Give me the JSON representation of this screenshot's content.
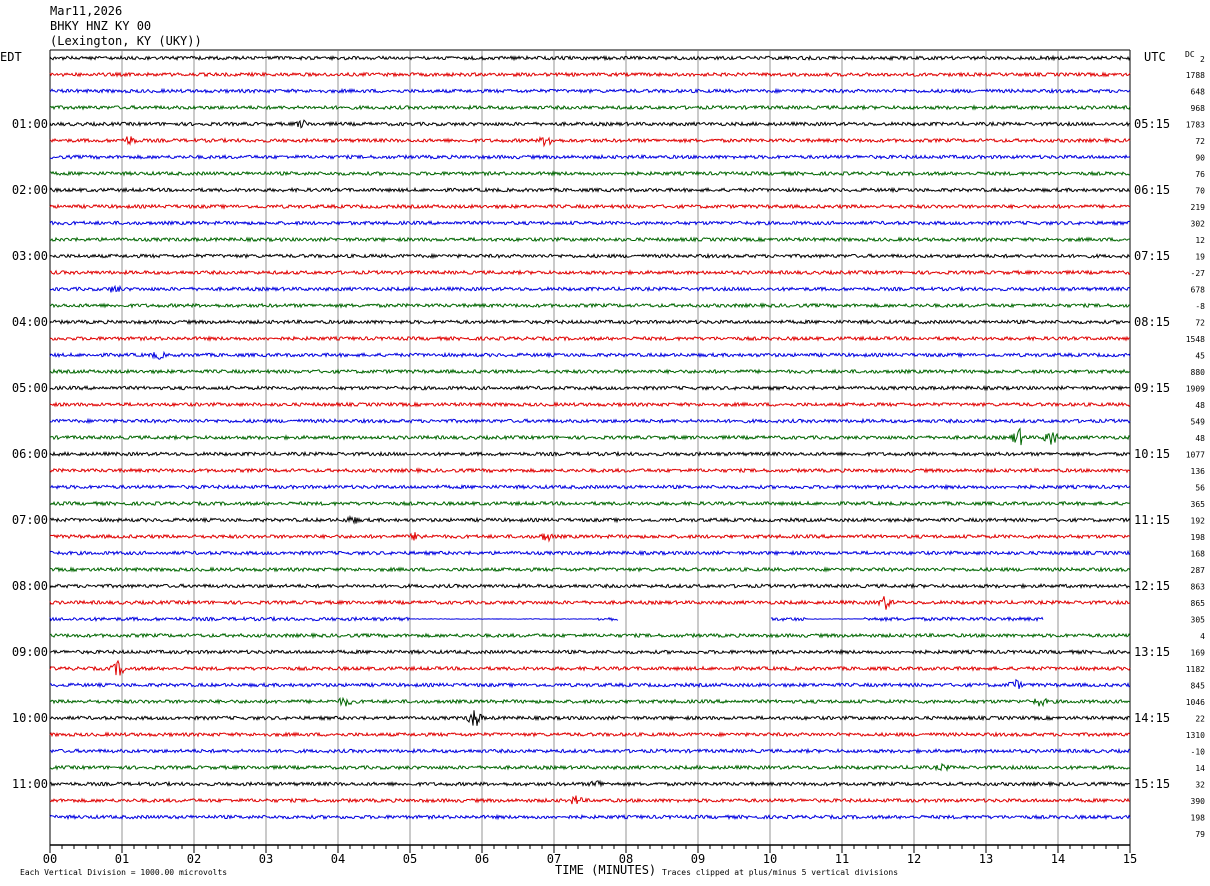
{
  "header": {
    "date": "Mar11,2026",
    "station": "BHKY HNZ KY 00",
    "location": "(Lexington, KY (UKY))"
  },
  "labels": {
    "left_zone": "EDT",
    "right_zone": "UTC",
    "dc": "DC",
    "dc_value": "2",
    "footer_left": "Each Vertical Division = 1000.00 microvolts",
    "footer_center": "TIME (MINUTES)",
    "footer_right": "Traces clipped at plus/minus 5 vertical divisions"
  },
  "chart_data": {
    "type": "line",
    "title": "",
    "xlabel": "TIME (MINUTES)",
    "ylabel": "",
    "xlim": [
      0,
      15
    ],
    "x_ticks": [
      "00",
      "01",
      "02",
      "03",
      "04",
      "05",
      "06",
      "07",
      "08",
      "09",
      "10",
      "11",
      "12",
      "13",
      "14",
      "15"
    ],
    "grid": "vertical lines every minute",
    "trace_colors": [
      "#000000",
      "#e00000",
      "#0000e0",
      "#006600"
    ],
    "left_hour_labels": [
      "01:00",
      "02:00",
      "03:00",
      "04:00",
      "05:00",
      "06:00",
      "07:00",
      "08:00",
      "09:00",
      "10:00",
      "11:00"
    ],
    "right_hour_labels": [
      "05:15",
      "06:15",
      "07:15",
      "08:15",
      "09:15",
      "10:15",
      "11:15",
      "12:15",
      "13:15",
      "14:15",
      "15:15"
    ],
    "trace_dc_offsets": [
      "1788",
      "648",
      "968",
      "1783",
      "72",
      "90",
      "76",
      "70",
      "219",
      "302",
      "12",
      "19",
      "-27",
      "678",
      "-8",
      "72",
      "1548",
      "45",
      "880",
      "1909",
      "48",
      "549",
      "48",
      "1077",
      "136",
      "56",
      "365",
      "192",
      "198",
      "168",
      "287",
      "863",
      "865",
      "305",
      "4",
      "169",
      "1182",
      "845",
      "1046",
      "22",
      "1310",
      "-10",
      "14",
      "32",
      "390",
      "198",
      "79"
    ],
    "events": [
      {
        "trace": 4,
        "x_min": 3.5,
        "amp": 0.4
      },
      {
        "trace": 5,
        "x_min": 1.1,
        "amp": 0.5
      },
      {
        "trace": 5,
        "x_min": 6.9,
        "amp": 0.7
      },
      {
        "trace": 14,
        "x_min": 0.9,
        "amp": 0.4
      },
      {
        "trace": 18,
        "x_min": 1.5,
        "amp": 0.4
      },
      {
        "trace": 23,
        "x_min": 13.45,
        "amp": 1.1
      },
      {
        "trace": 23,
        "x_min": 13.9,
        "amp": 1.0
      },
      {
        "trace": 28,
        "x_min": 4.2,
        "amp": 0.4
      },
      {
        "trace": 29,
        "x_min": 5.1,
        "amp": 0.5
      },
      {
        "trace": 29,
        "x_min": 6.9,
        "amp": 0.5
      },
      {
        "trace": 33,
        "x_min": 11.6,
        "amp": 0.8
      },
      {
        "trace": 37,
        "x_min": 0.95,
        "amp": 0.9
      },
      {
        "trace": 38,
        "x_min": 13.4,
        "amp": 0.6
      },
      {
        "trace": 39,
        "x_min": 4.1,
        "amp": 0.5
      },
      {
        "trace": 39,
        "x_min": 13.75,
        "amp": 0.5
      },
      {
        "trace": 40,
        "x_min": 5.9,
        "amp": 1.2
      },
      {
        "trace": 43,
        "x_min": 12.4,
        "amp": 0.3
      },
      {
        "trace": 44,
        "x_min": 7.6,
        "amp": 0.4
      },
      {
        "trace": 45,
        "x_min": 7.3,
        "amp": 0.5
      }
    ],
    "flat_segments": [
      {
        "trace": 34,
        "from_min": 5.0,
        "to_min": 7.6
      },
      {
        "trace": 34,
        "from_min": 10.5,
        "to_min": 11.3
      }
    ],
    "gaps": [
      {
        "trace": 34,
        "from_min": 7.9,
        "to_min": 10.0
      },
      {
        "trace": 34,
        "from_min": 13.8,
        "to_min": 15.0
      }
    ]
  }
}
